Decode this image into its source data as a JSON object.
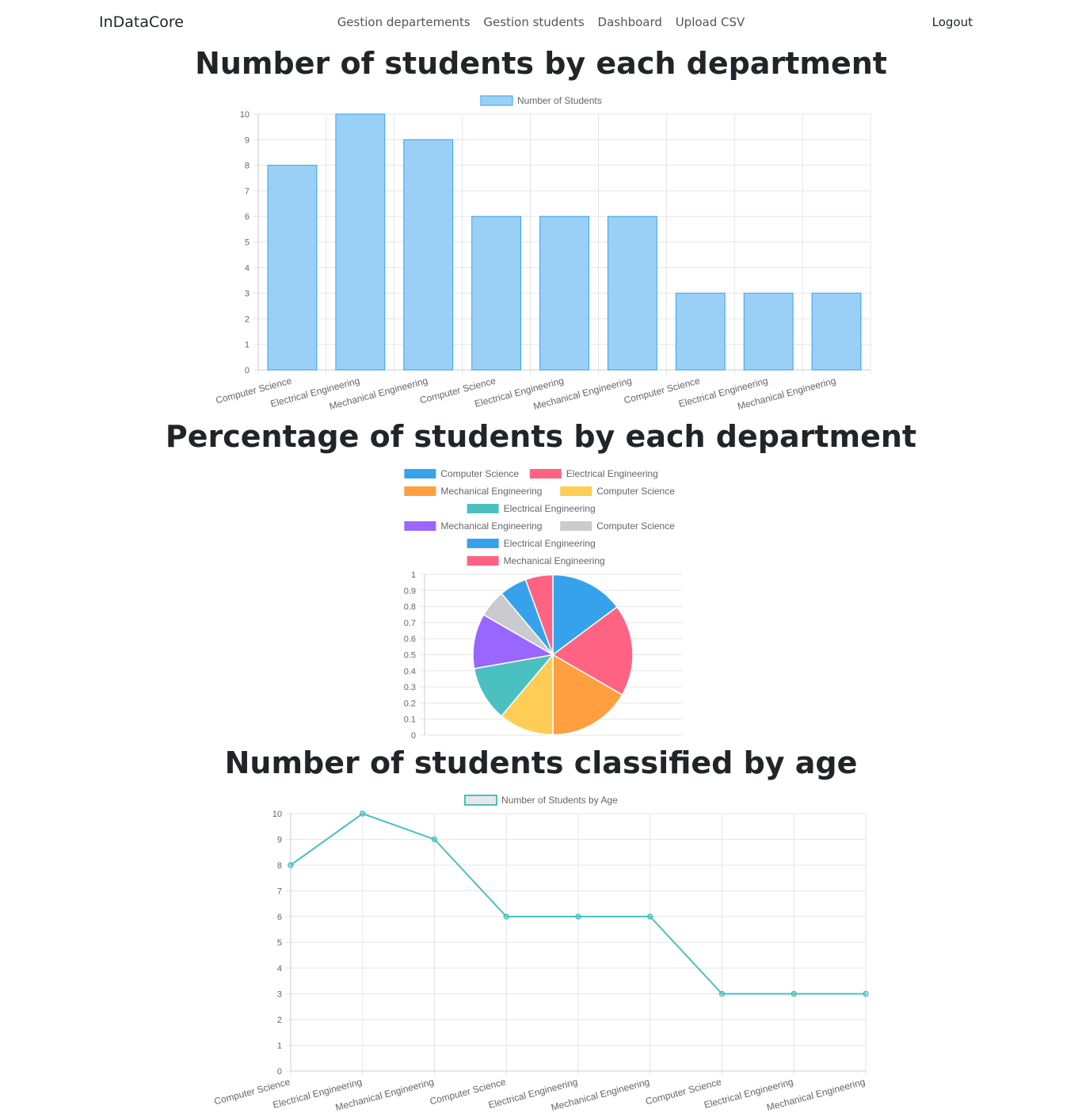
{
  "nav": {
    "brand": "InDataCore",
    "links": [
      "Gestion departements",
      "Gestion students",
      "Dashboard",
      "Upload CSV"
    ],
    "logout": "Logout"
  },
  "sections": {
    "bar_title": "Number of students by each department",
    "pie_title": "Percentage of students by each department",
    "line_title": "Number of students classified by age"
  },
  "colors": {
    "bar_fill": "#9ad0f5",
    "bar_border": "#36a2eb",
    "line": "#4bc0c0",
    "pie": [
      "#36a2eb",
      "#ff6384",
      "#ff9f40",
      "#ffcd56",
      "#4bc0c0",
      "#9966ff",
      "#c9cbcf",
      "#36a2eb",
      "#ff6384"
    ]
  },
  "chart_data": [
    {
      "type": "bar",
      "legend": "Number of Students",
      "categories": [
        "Computer Science",
        "Electrical Engineering",
        "Mechanical Engineering",
        "Computer Science",
        "Electrical Engineering",
        "Mechanical Engineering",
        "Computer Science",
        "Electrical Engineering",
        "Mechanical Engineering"
      ],
      "values": [
        8,
        10,
        9,
        6,
        6,
        6,
        3,
        3,
        3
      ],
      "ylim": [
        0,
        10
      ],
      "yticks": [
        "0",
        "1",
        "2",
        "3",
        "4",
        "5",
        "6",
        "7",
        "8",
        "9",
        "10"
      ],
      "grid": true,
      "legend_position": "top"
    },
    {
      "type": "pie",
      "labels": [
        "Computer Science",
        "Electrical Engineering",
        "Mechanical Engineering",
        "Computer Science",
        "Electrical Engineering",
        "Mechanical Engineering",
        "Computer Science",
        "Electrical Engineering",
        "Mechanical Engineering"
      ],
      "values": [
        8,
        10,
        9,
        6,
        6,
        6,
        3,
        3,
        3
      ],
      "yticks": [
        "0",
        "0.1",
        "0.2",
        "0.3",
        "0.4",
        "0.5",
        "0.6",
        "0.7",
        "0.8",
        "0.9",
        "1"
      ],
      "legend_position": "top"
    },
    {
      "type": "line",
      "legend": "Number of Students by Age",
      "categories": [
        "Computer Science",
        "Electrical Engineering",
        "Mechanical Engineering",
        "Computer Science",
        "Electrical Engineering",
        "Mechanical Engineering",
        "Computer Science",
        "Electrical Engineering",
        "Mechanical Engineering"
      ],
      "values": [
        8,
        10,
        9,
        6,
        6,
        6,
        3,
        3,
        3
      ],
      "ylim": [
        0,
        10
      ],
      "yticks": [
        "0",
        "1",
        "2",
        "3",
        "4",
        "5",
        "6",
        "7",
        "8",
        "9",
        "10"
      ],
      "grid": true,
      "legend_position": "top"
    }
  ]
}
